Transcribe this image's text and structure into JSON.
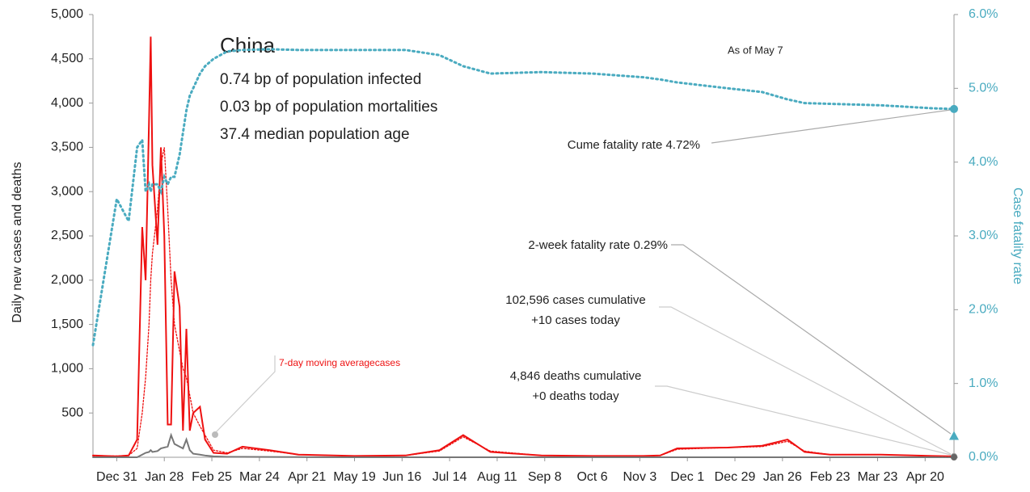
{
  "chart_data": {
    "type": "line",
    "title": "China",
    "subtitle": [
      "0.74 bp of population infected",
      "0.03 bp of population mortalities",
      "37.4 median population age"
    ],
    "ylabel": "Daily new cases and deaths",
    "y2label": "Case fatality rate",
    "annotations": {
      "as_of": "As of May 7",
      "cume": "Cume fatality rate 4.72%",
      "two_week": "2-week fatality rate 0.29%",
      "cases_cum": "102,596 cases cumulative",
      "cases_today": "+10 cases today",
      "deaths_cum": "4,846 deaths cumulative",
      "deaths_today": "+0 deaths today",
      "avg": "7-day moving averagecases"
    },
    "two_week_rate": 0.29,
    "x": [
      -14,
      0,
      7,
      12,
      15,
      17,
      19,
      20,
      21,
      24,
      26,
      28,
      30,
      32,
      34,
      37,
      39,
      41,
      43,
      45,
      49,
      52,
      57,
      65,
      74,
      90,
      107,
      140,
      170,
      190,
      204,
      220,
      250,
      280,
      310,
      320,
      330,
      360,
      380,
      395,
      405,
      420,
      450,
      480,
      493
    ],
    "xlim": [
      -14,
      493
    ],
    "xticks": [
      {
        "value": 0,
        "label": "Dec 31"
      },
      {
        "value": 28,
        "label": "Jan 28"
      },
      {
        "value": 56,
        "label": "Feb 25"
      },
      {
        "value": 84,
        "label": "Mar 24"
      },
      {
        "value": 112,
        "label": "Apr 21"
      },
      {
        "value": 140,
        "label": "May 19"
      },
      {
        "value": 168,
        "label": "Jun 16"
      },
      {
        "value": 196,
        "label": "Jul 14"
      },
      {
        "value": 224,
        "label": "Aug 11"
      },
      {
        "value": 252,
        "label": "Sep 8"
      },
      {
        "value": 280,
        "label": "Oct 6"
      },
      {
        "value": 308,
        "label": "Nov 3"
      },
      {
        "value": 336,
        "label": "Dec 1"
      },
      {
        "value": 364,
        "label": "Dec 29"
      },
      {
        "value": 392,
        "label": "Jan 26"
      },
      {
        "value": 420,
        "label": "Feb 23"
      },
      {
        "value": 448,
        "label": "Mar 23"
      },
      {
        "value": 476,
        "label": "Apr 20"
      }
    ],
    "ylim": [
      0,
      5000
    ],
    "yticks": [
      {
        "value": 500,
        "label": "500"
      },
      {
        "value": 1000,
        "label": "1,000"
      },
      {
        "value": 1500,
        "label": "1,500"
      },
      {
        "value": 2000,
        "label": "2,000"
      },
      {
        "value": 2500,
        "label": "2,500"
      },
      {
        "value": 3000,
        "label": "3,000"
      },
      {
        "value": 3500,
        "label": "3,500"
      },
      {
        "value": 4000,
        "label": "4,000"
      },
      {
        "value": 4500,
        "label": "4,500"
      },
      {
        "value": 5000,
        "label": "5,000"
      }
    ],
    "y2lim": [
      0,
      6
    ],
    "y2ticks": [
      {
        "value": 0,
        "label": "0.0%"
      },
      {
        "value": 1,
        "label": "1.0%"
      },
      {
        "value": 2,
        "label": "2.0%"
      },
      {
        "value": 3,
        "label": "3.0%"
      },
      {
        "value": 4,
        "label": "4.0%"
      },
      {
        "value": 5,
        "label": "5.0%"
      },
      {
        "value": 6,
        "label": "6.0%"
      }
    ],
    "series": [
      {
        "name": "Cases",
        "color": "#ee1111",
        "style": "solid",
        "values": [
          20,
          10,
          20,
          200,
          2600,
          2000,
          3800,
          4750,
          3300,
          2400,
          3500,
          2500,
          370,
          370,
          2100,
          1700,
          300,
          1450,
          300,
          500,
          570,
          200,
          50,
          40,
          120,
          80,
          30,
          15,
          20,
          80,
          250,
          60,
          20,
          15,
          15,
          20,
          100,
          110,
          130,
          200,
          60,
          30,
          30,
          15,
          10
        ]
      },
      {
        "name": "Deaths",
        "color": "#777777",
        "style": "solid",
        "values": [
          0,
          0,
          0,
          0,
          30,
          50,
          60,
          80,
          60,
          70,
          100,
          110,
          120,
          250,
          150,
          120,
          100,
          200,
          80,
          40,
          30,
          20,
          10,
          5,
          5,
          3,
          2,
          0,
          0,
          0,
          0,
          0,
          0,
          0,
          0,
          0,
          0,
          0,
          0,
          0,
          0,
          0,
          0,
          0,
          0
        ]
      },
      {
        "name": "7-day moving average cases",
        "color": "#ee1111",
        "style": "dotted",
        "values": [
          15,
          15,
          20,
          100,
          500,
          900,
          1500,
          2000,
          2300,
          2800,
          3300,
          3500,
          2800,
          2000,
          1500,
          1200,
          1000,
          900,
          700,
          500,
          350,
          250,
          80,
          50,
          100,
          70,
          30,
          15,
          20,
          70,
          230,
          70,
          20,
          15,
          15,
          20,
          90,
          110,
          120,
          180,
          70,
          30,
          30,
          15,
          10
        ]
      },
      {
        "name": "Case fatality rate",
        "color": "#4aabc0",
        "style": "dotted",
        "axis": "y2",
        "values": [
          1.52,
          3.5,
          3.2,
          4.2,
          4.3,
          3.6,
          3.7,
          3.6,
          3.7,
          3.7,
          3.6,
          3.8,
          3.7,
          3.8,
          3.8,
          4.1,
          4.4,
          4.7,
          4.9,
          5.0,
          5.2,
          5.3,
          5.4,
          5.5,
          5.52,
          5.53,
          5.52,
          5.52,
          5.52,
          5.45,
          5.3,
          5.2,
          5.22,
          5.2,
          5.15,
          5.12,
          5.08,
          5.0,
          4.95,
          4.85,
          4.8,
          4.79,
          4.77,
          4.73,
          4.72
        ]
      }
    ]
  }
}
